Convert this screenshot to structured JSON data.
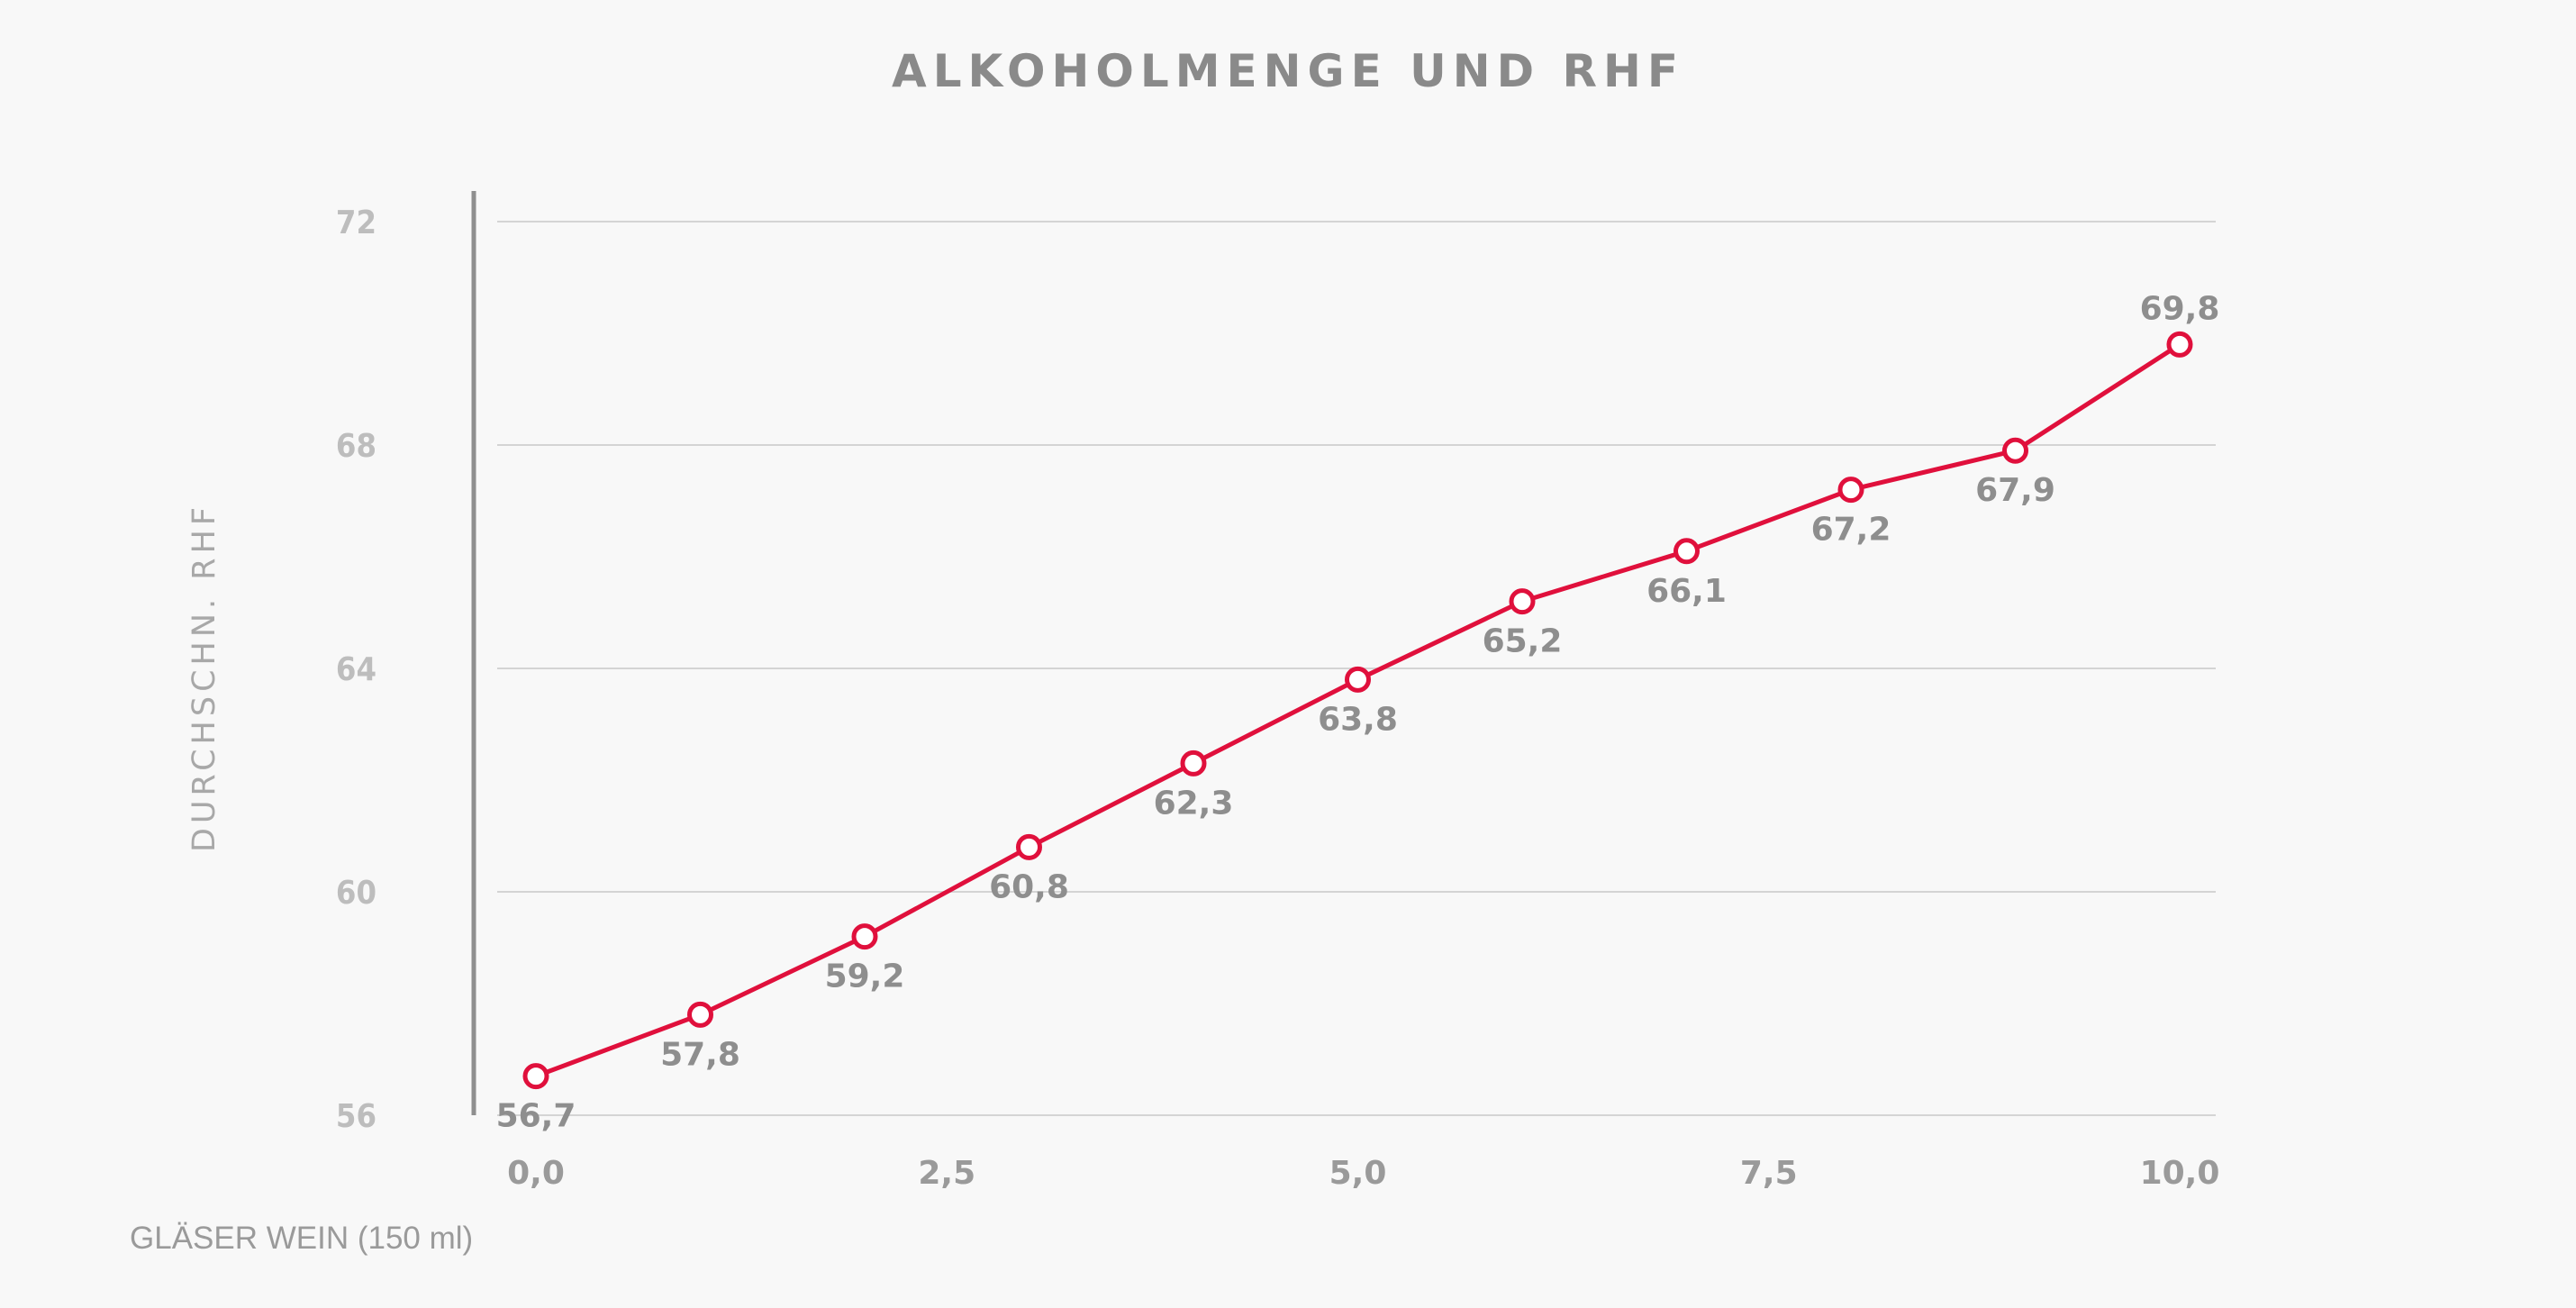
{
  "chart_data": {
    "type": "line",
    "title": "ALKOHOLMENGE UND RHF",
    "ylabel": "DURCHSCHN. RHF",
    "xlabel": "GLÄSER WEIN (150 ml)",
    "xlim": [
      0,
      10
    ],
    "ylim": [
      56,
      72
    ],
    "x_ticks": [
      0,
      2.5,
      5,
      7.5,
      10
    ],
    "x_tick_labels": [
      "0,0",
      "2,5",
      "5,0",
      "7,5",
      "10,0"
    ],
    "y_ticks": [
      56,
      60,
      64,
      68,
      72
    ],
    "y_tick_labels": [
      "56",
      "60",
      "64",
      "68",
      "72"
    ],
    "grid": true,
    "legend": "none",
    "series": [
      {
        "color": "#e0103c",
        "x": [
          0,
          1,
          2,
          3,
          4,
          5,
          6,
          7,
          8,
          9,
          10
        ],
        "y": [
          56.7,
          57.8,
          59.2,
          60.8,
          62.3,
          63.8,
          65.2,
          66.1,
          67.2,
          67.9,
          69.8
        ],
        "labels": [
          "56,7",
          "57,8",
          "59,2",
          "60,8",
          "62,3",
          "63,8",
          "65,2",
          "66,1",
          "67,2",
          "67,9",
          "69,8"
        ]
      }
    ]
  }
}
